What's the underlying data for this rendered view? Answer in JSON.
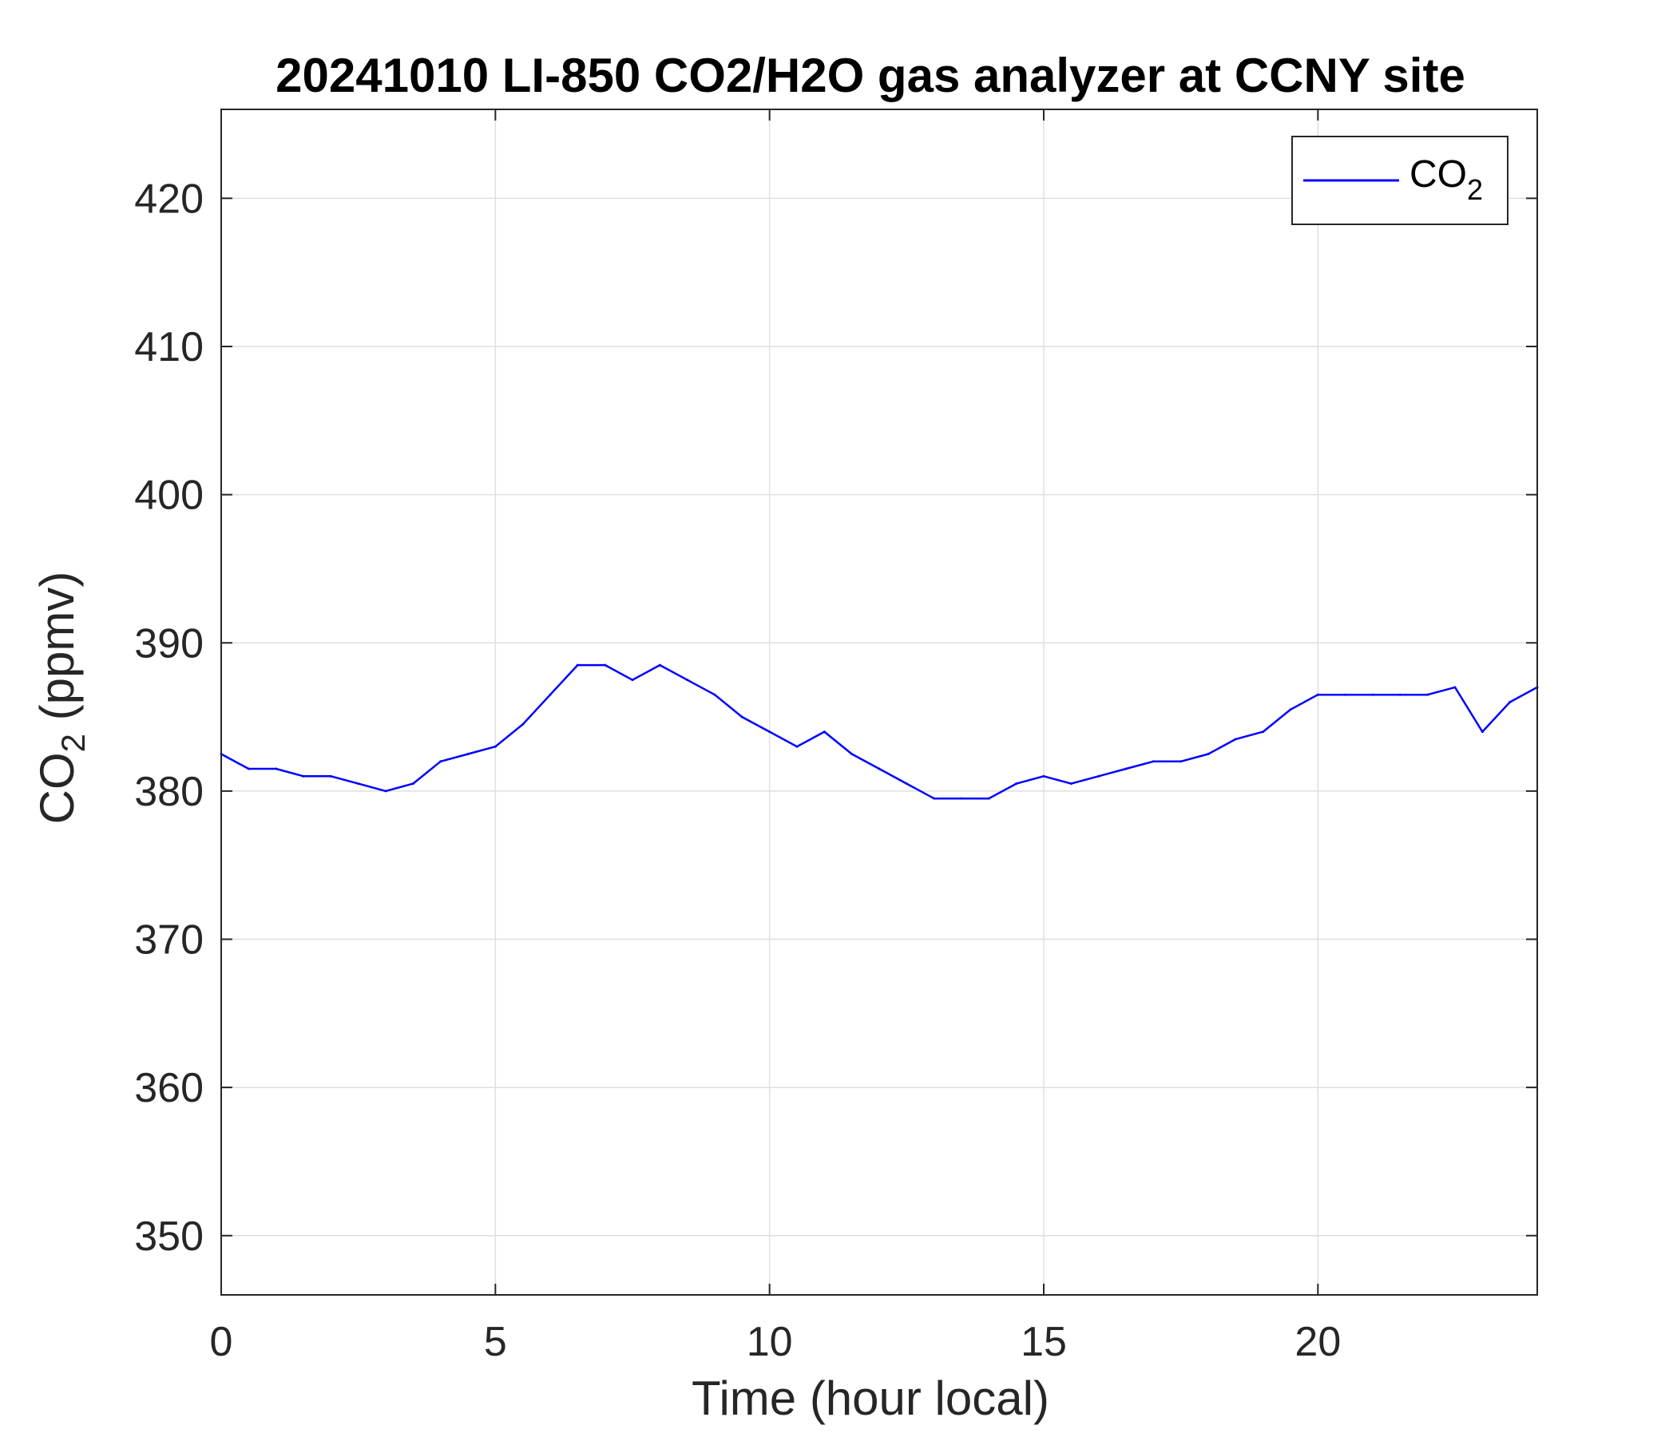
{
  "chart_data": {
    "type": "line",
    "title": "20241010 LI-850 CO2/H2O gas analyzer at CCNY site",
    "xlabel": "Time (hour local)",
    "ylabel": {
      "base": "CO",
      "sub": "2",
      "suffix": " (ppmv)"
    },
    "xlim": [
      0,
      24
    ],
    "ylim": [
      346,
      426
    ],
    "xticks": [
      0,
      5,
      10,
      15,
      20
    ],
    "yticks": [
      350,
      360,
      370,
      380,
      390,
      400,
      410,
      420
    ],
    "grid": true,
    "legend": {
      "position": "top-right",
      "entries": [
        {
          "base": "CO",
          "sub": "2",
          "color": "#0000FF"
        }
      ]
    },
    "series": [
      {
        "name": "CO2",
        "color": "#0000FF",
        "x": [
          0,
          0.5,
          1,
          1.5,
          2,
          2.5,
          3,
          3.5,
          4,
          4.5,
          5,
          5.5,
          6,
          6.5,
          7,
          7.5,
          8,
          8.5,
          9,
          9.5,
          10,
          10.5,
          11,
          11.5,
          12,
          12.5,
          13,
          13.5,
          14,
          14.5,
          15,
          15.5,
          16,
          16.5,
          17,
          17.5,
          18,
          18.5,
          19,
          19.5,
          20,
          20.5,
          21,
          21.5,
          22,
          22.5,
          23,
          23.5,
          24
        ],
        "y": [
          382.5,
          381.5,
          381.5,
          381,
          381,
          380.5,
          380,
          380.5,
          382,
          382.5,
          383,
          384.5,
          386.5,
          388.5,
          388.5,
          387.5,
          388.5,
          387.5,
          386.5,
          385,
          384,
          383,
          384,
          382.5,
          381.5,
          380.5,
          379.5,
          379.5,
          379.5,
          380.5,
          381,
          380.5,
          381,
          381.5,
          382,
          382,
          382.5,
          383.5,
          384,
          385.5,
          386.5,
          386.5,
          386.5,
          386.5,
          386.5,
          387,
          384,
          386,
          387
        ]
      }
    ]
  },
  "colors": {
    "series": "#0000FF",
    "grid": "#DFDFDF",
    "axis": "#262626"
  }
}
